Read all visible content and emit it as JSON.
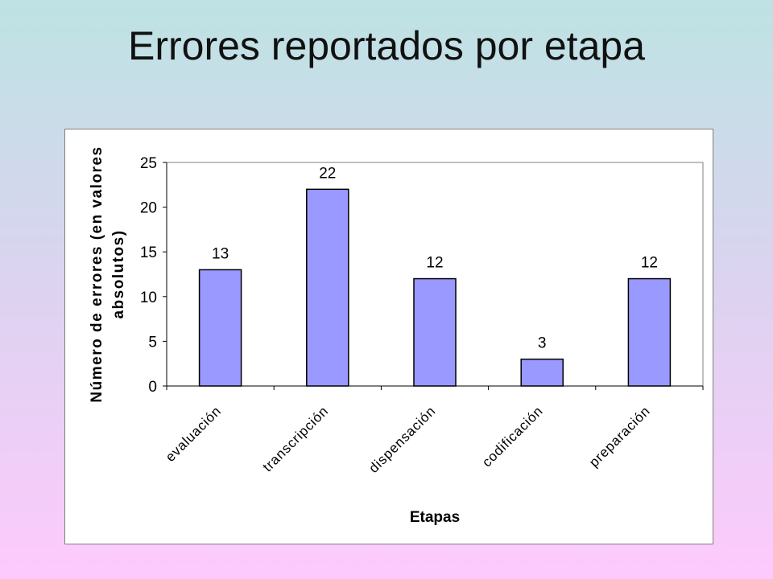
{
  "slide": {
    "title": "Errores reportados por etapa"
  },
  "chart_data": {
    "type": "bar",
    "title": "",
    "categories": [
      "evaluación",
      "transcripción",
      "dispensación",
      "codificación",
      "preparación"
    ],
    "values": [
      13,
      22,
      12,
      3,
      12
    ],
    "xlabel": "Etapas",
    "ylabel": "Número de errores (en valores absolutos)",
    "ylabel_lines": [
      "Número de errores (en valores",
      "absolutos)"
    ],
    "ylim": [
      0,
      25
    ],
    "yticks": [
      0,
      5,
      10,
      15,
      20,
      25
    ],
    "grid": false,
    "legend": "none",
    "data_labels": true,
    "bar_color": "#9999ff",
    "bar_stroke": "#000000"
  }
}
